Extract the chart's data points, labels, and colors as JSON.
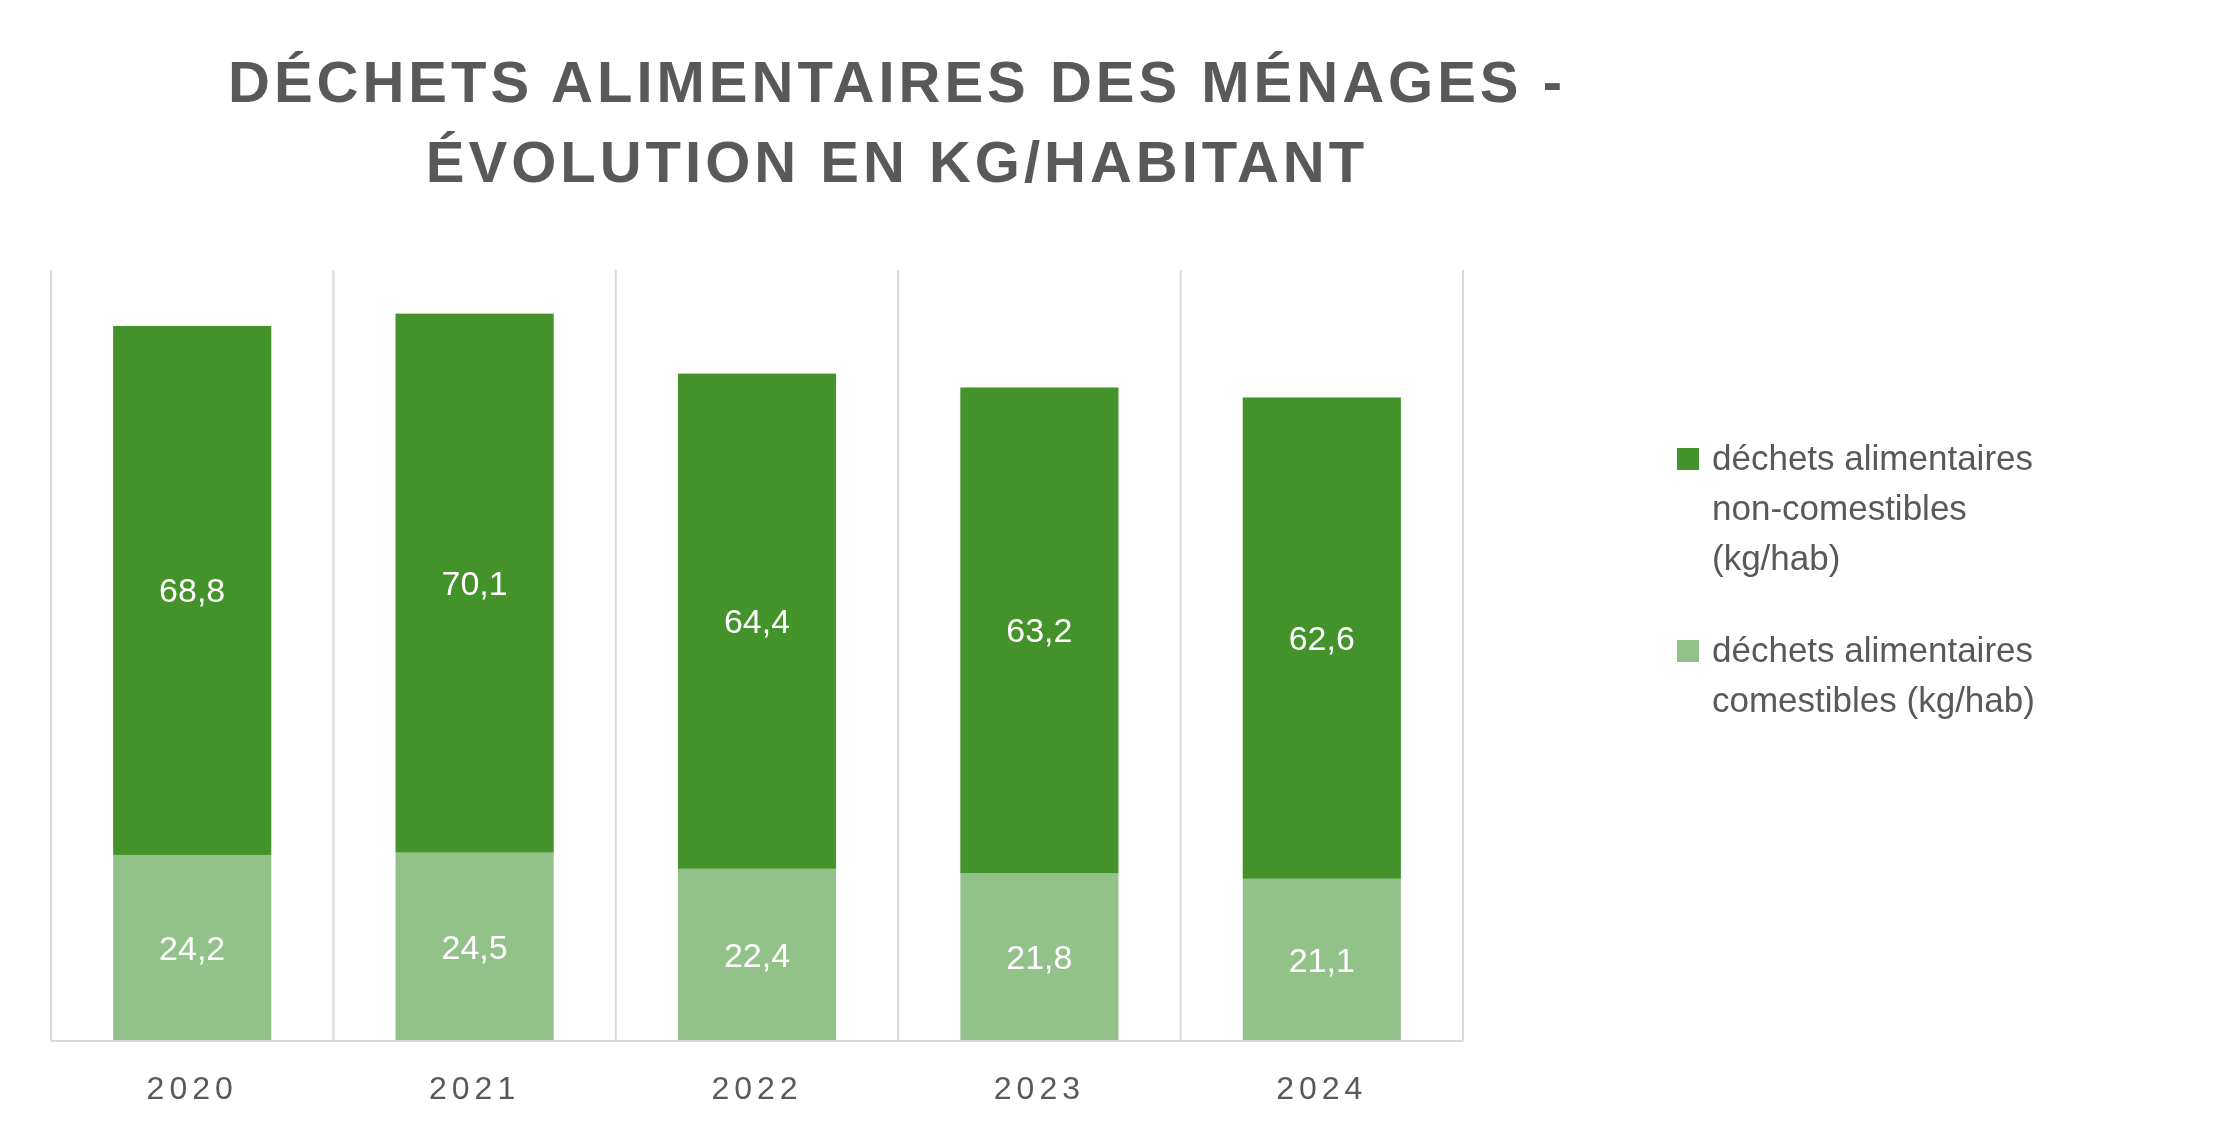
{
  "chart_data": {
    "type": "bar",
    "title": "DÉCHETS ALIMENTAIRES DES MÉNAGES - ÉVOLUTION EN KG/HABITANT",
    "categories": [
      "2020",
      "2021",
      "2022",
      "2023",
      "2024"
    ],
    "stacked": true,
    "legend": "right",
    "grid": "x",
    "series": [
      {
        "name": "déchets alimentaires comestibles (kg/hab)",
        "color": "#93c18a",
        "values": [
          24.2,
          24.5,
          22.4,
          21.8,
          21.1
        ],
        "value_labels": [
          "24,2",
          "24,5",
          "22,4",
          "21,8",
          "21,1"
        ]
      },
      {
        "name": "déchets alimentaires non-comestibles (kg/hab)",
        "color": "#43922a",
        "values": [
          68.8,
          70.1,
          64.4,
          63.2,
          62.6
        ],
        "value_labels": [
          "68,8",
          "70,1",
          "64,4",
          "63,2",
          "62,6"
        ]
      }
    ]
  }
}
